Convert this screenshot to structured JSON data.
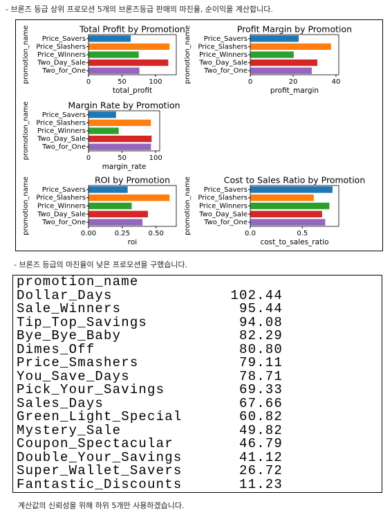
{
  "intro_text": "- 브론즈 등급 상위 프로모션 5개의 브론즈등급 판매의 마진율, 순이익을 계산합니다.",
  "chart_data": [
    {
      "type": "barh",
      "title": "Total Profit by Promotion",
      "xlabel": "total_profit",
      "ylabel": "promotion_name",
      "categories": [
        "Price_Savers",
        "Price_Slashers",
        "Price_Winners",
        "Two_Day_Sale",
        "Two_for_One"
      ],
      "values": [
        63,
        121,
        75,
        119,
        76
      ],
      "colors": [
        "#1f77b4",
        "#ff7f0e",
        "#2ca02c",
        "#d62728",
        "#9467bd"
      ],
      "xlim": [
        0,
        131
      ],
      "xticks": [
        0,
        50,
        100
      ]
    },
    {
      "type": "barh",
      "title": "Profit Margin by Promotion",
      "xlabel": "profit_margin",
      "ylabel": "promotion_name",
      "categories": [
        "Price_Savers",
        "Price_Slashers",
        "Price_Winners",
        "Two_Day_Sale",
        "Two_for_One"
      ],
      "values": [
        22.6,
        37.7,
        20.3,
        31.3,
        28.7
      ],
      "colors": [
        "#1f77b4",
        "#ff7f0e",
        "#2ca02c",
        "#d62728",
        "#9467bd"
      ],
      "xlim": [
        0,
        41.3
      ],
      "xticks": [
        0,
        20,
        40
      ]
    },
    {
      "type": "barh",
      "title": "Margin Rate by Promotion",
      "xlabel": "margin_rate",
      "ylabel": "promotion_name",
      "categories": [
        "Price_Savers",
        "Price_Slashers",
        "Price_Winners",
        "Two_Day_Sale",
        "Two_for_One"
      ],
      "values": [
        41,
        93,
        45,
        94,
        93
      ],
      "colors": [
        "#1f77b4",
        "#ff7f0e",
        "#2ca02c",
        "#d62728",
        "#9467bd"
      ],
      "xlim": [
        0,
        106
      ],
      "xticks": [
        0,
        50,
        100
      ]
    },
    {
      "type": "barh",
      "title": "ROI by Promotion",
      "xlabel": "roi",
      "ylabel": "promotion_name",
      "categories": [
        "Price_Savers",
        "Price_Slashers",
        "Price_Winners",
        "Two_Day_Sale",
        "Two_for_One"
      ],
      "values": [
        0.29,
        0.6,
        0.32,
        0.44,
        0.4
      ],
      "colors": [
        "#1f77b4",
        "#ff7f0e",
        "#2ca02c",
        "#d62728",
        "#9467bd"
      ],
      "xlim": [
        0,
        0.65
      ],
      "xticks": [
        {
          "value": 0,
          "label": "0.00"
        },
        0.25,
        {
          "value": 0.5,
          "label": "0.50"
        }
      ]
    },
    {
      "type": "barh",
      "title": "Cost to Sales Ratio by Promotion",
      "xlabel": "cost_to_sales_ratio",
      "ylabel": "promotion_name",
      "categories": [
        "Price_Savers",
        "Price_Slashers",
        "Price_Winners",
        "Two_Day_Sale",
        "Two_for_One"
      ],
      "values": [
        0.79,
        0.61,
        0.76,
        0.69,
        0.72
      ],
      "colors": [
        "#1f77b4",
        "#ff7f0e",
        "#2ca02c",
        "#d62728",
        "#9467bd"
      ],
      "xlim": [
        0,
        0.85
      ],
      "xticks": [
        {
          "value": 0,
          "label": "0.0"
        },
        0.5
      ]
    }
  ],
  "note_text": "- 브론즈 등급의 마진율이 낮은 프로모션을 구했습니다.",
  "table": {
    "header": "promotion_name",
    "rows": [
      [
        "Dollar_Days",
        "102.44"
      ],
      [
        "Sale_Winners",
        "95.44"
      ],
      [
        "Tip_Top_Savings",
        "94.08"
      ],
      [
        "Bye_Bye_Baby",
        "82.29"
      ],
      [
        "Dimes_Off",
        "80.80"
      ],
      [
        "Price_Smashers",
        "79.11"
      ],
      [
        "You_Save_Days",
        "78.71"
      ],
      [
        "Pick_Your_Savings",
        "69.33"
      ],
      [
        "Sales_Days",
        "67.66"
      ],
      [
        "Green_Light_Special",
        "60.82"
      ],
      [
        "Mystery_Sale",
        "49.82"
      ],
      [
        "Coupon_Spectacular",
        "46.79"
      ],
      [
        "Double_Your_Savings",
        "41.12"
      ],
      [
        "Super_Wallet_Savers",
        "26.72"
      ],
      [
        "Fantastic_Discounts",
        "11.23"
      ]
    ]
  },
  "footer_text": "계산값의 신뢰성을 위해 하위 5개만 사용하겠습니다."
}
